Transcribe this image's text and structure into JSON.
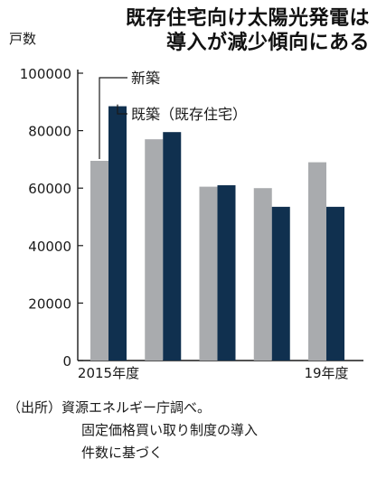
{
  "title_lines": [
    "既存住宅向け太陽光発電は",
    "導入が減少傾向にある"
  ],
  "chart_data": {
    "type": "bar",
    "title": "既存住宅向け太陽光発電は導入が減少傾向にある",
    "ylabel": "戸数",
    "xlabel": "",
    "ylim": [
      0,
      100000
    ],
    "y_ticks": [
      "0",
      "20000",
      "40000",
      "60000",
      "80000",
      "100000"
    ],
    "categories": [
      "2015年度",
      "",
      "",
      "",
      "19年度"
    ],
    "series": [
      {
        "name": "新築",
        "values": [
          69500,
          77000,
          60500,
          60000,
          69000
        ],
        "color": "#a9abae"
      },
      {
        "name": "既築（既存住宅）",
        "values": [
          88500,
          79500,
          61000,
          53500,
          53500
        ],
        "color": "#10304f"
      }
    ],
    "grid": false,
    "legend_position": "top-left"
  },
  "source_lines": [
    "（出所）資源エネルギー庁調べ。",
    "固定価格買い取り制度の導入",
    "件数に基づく"
  ]
}
